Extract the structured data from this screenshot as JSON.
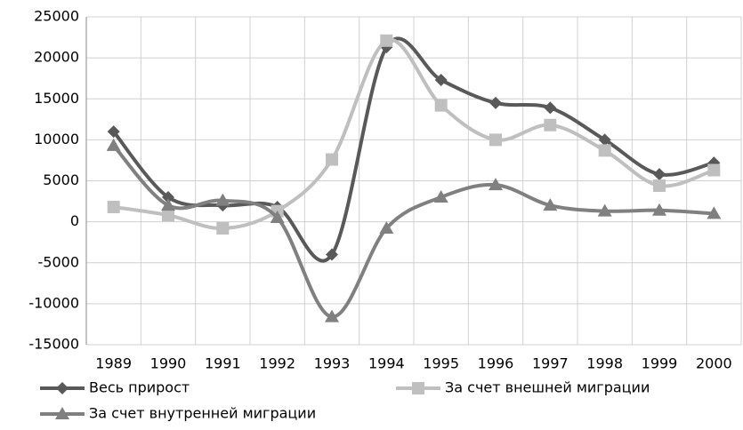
{
  "chart_data": {
    "type": "line",
    "categories": [
      "1989",
      "1990",
      "1991",
      "1992",
      "1993",
      "1994",
      "1995",
      "1996",
      "1997",
      "1998",
      "1999",
      "2000"
    ],
    "series": [
      {
        "name": "Весь прирост",
        "color": "#595959",
        "marker": "diamond",
        "values": [
          11000,
          3000,
          2000,
          1800,
          -4000,
          21300,
          17300,
          14500,
          13900,
          10000,
          5800,
          7200
        ]
      },
      {
        "name": "За счет внешней миграции",
        "color": "#bfbfbf",
        "marker": "square",
        "values": [
          1800,
          800,
          -800,
          1300,
          7600,
          22100,
          14200,
          10000,
          11800,
          8700,
          4400,
          6300
        ]
      },
      {
        "name": "За счет внутренней миграции",
        "color": "#808080",
        "marker": "triangle",
        "values": [
          9300,
          2000,
          2600,
          500,
          -11600,
          -800,
          3000,
          4500,
          2000,
          1300,
          1400,
          1000
        ]
      }
    ],
    "ylim": [
      -15000,
      25000
    ],
    "yticks": [
      -15000,
      -10000,
      -5000,
      0,
      5000,
      10000,
      15000,
      20000,
      25000
    ],
    "grid": true,
    "smooth": true,
    "legend": "bottom"
  }
}
